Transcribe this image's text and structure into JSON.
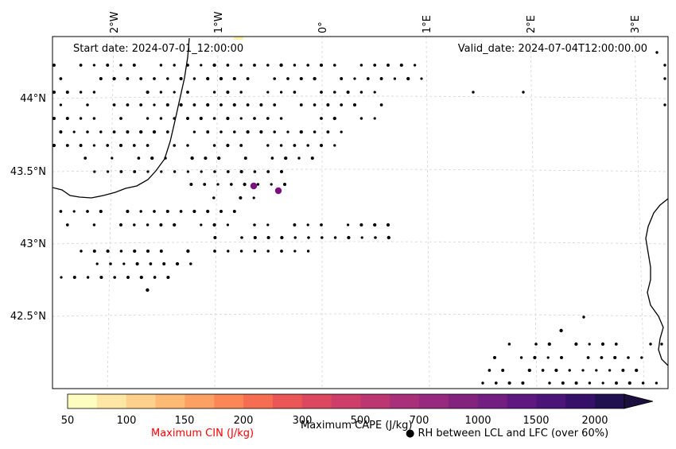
{
  "header": {
    "start_date": "Start date: 2024-07-01_12:00:00",
    "valid_date": "Valid_date: 2024-07-04T12:00:00.00"
  },
  "map": {
    "lon_labels": [
      "2°W",
      "1°W",
      "0°",
      "1°E",
      "2°E",
      "3°E"
    ],
    "lat_labels": [
      "44°N",
      "43.5°N",
      "43°N",
      "42.5°N"
    ],
    "colors": {
      "coastline": "#000000",
      "gridline": "#cfcfcf",
      "dots": "#000000",
      "cape_marker": "#7b0f82",
      "cin_marker": "#fff1a8"
    }
  },
  "colorbar": {
    "tick_labels": [
      "50",
      "100",
      "150",
      "200",
      "300",
      "500",
      "700",
      "1000",
      "1500",
      "2000"
    ],
    "colors": [
      "#fdfdbf",
      "#fee6a4",
      "#fdd08b",
      "#fdba75",
      "#fca063",
      "#fb8757",
      "#f66e52",
      "#eb5757",
      "#dd4861",
      "#cd3f6a",
      "#bc3772",
      "#a92f7a",
      "#972a7e",
      "#84237e",
      "#721f81",
      "#5f187f",
      "#4b1478",
      "#361069",
      "#221150"
    ],
    "extend_color": "#1a0f3d"
  },
  "legend": {
    "cin_label": "Maximum CIN (J/kg)",
    "cin_color": "#ff0000",
    "cape_label": "Maximum CAPE (J/kg)",
    "rh_label": "RH between LCL and LFC (over 60%)",
    "rh_marker": "●"
  }
}
